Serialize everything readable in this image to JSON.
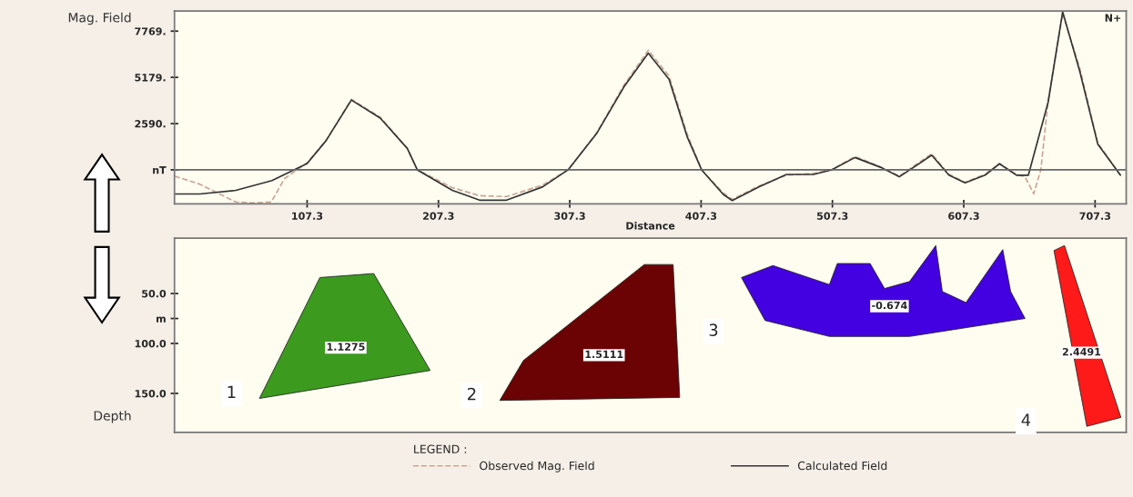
{
  "chart_data": [
    {
      "type": "line",
      "ylabel": "Mag. Field",
      "xlabel": "Distance",
      "annotations": [
        "N+"
      ],
      "legend": "bottom",
      "legend_title": "LEGEND :",
      "grid": false,
      "xlim": [
        6.3,
        731
      ],
      "xticks": [
        107.3,
        207.3,
        307.3,
        407.3,
        507.3,
        607.3,
        707.3
      ],
      "ylim": [
        -1900,
        8900
      ],
      "ref_lines": [
        {
          "axis": "y",
          "value": 0
        }
      ],
      "yticks": [
        {
          "value": 0,
          "label": "nT"
        },
        {
          "value": 2590,
          "label": "2590."
        },
        {
          "value": 5179,
          "label": "5179."
        },
        {
          "value": 7769,
          "label": "7769."
        }
      ],
      "series": [
        {
          "name": "Observed Mag. Field",
          "color": "#c9a596",
          "line_style": "dashed",
          "x": [
            6.3,
            25.5,
            53.0,
            66.7,
            80.0,
            90.0,
            107.3,
            121.7,
            141.0,
            163.0,
            183.6,
            191.2,
            217.9,
            238.6,
            259.2,
            286.7,
            306.0,
            328.0,
            348.6,
            367.1,
            382.9,
            396.7,
            407.7,
            424.2,
            431.0,
            451.6,
            472.3,
            492.9,
            506.6,
            524.5,
            544.4,
            558.2,
            582.9,
            596.0,
            608.3,
            623.5,
            634.5,
            647.5,
            654.0,
            660.6,
            666.0,
            671.6,
            682.6,
            695.6,
            709.4,
            726.6
          ],
          "values": [
            -350,
            -800,
            -1800,
            -1850,
            -1800,
            -500,
            400,
            1650,
            3950,
            2950,
            1200,
            0,
            -1000,
            -1450,
            -1500,
            -850,
            0,
            2100,
            4750,
            6700,
            5250,
            2000,
            0,
            -1300,
            -1650,
            -900,
            -300,
            -200,
            0,
            750,
            150,
            -350,
            900,
            -250,
            -700,
            -250,
            350,
            -250,
            -400,
            -1340,
            0,
            3900,
            8750,
            5700,
            1500,
            -300
          ]
        },
        {
          "name": "Calculated Field",
          "color": "#333333",
          "line_style": "solid",
          "x": [
            6.3,
            25.5,
            53.0,
            80.5,
            107.3,
            121.7,
            141.0,
            163.0,
            183.6,
            191.2,
            217.9,
            238.6,
            259.2,
            286.7,
            306.0,
            328.0,
            348.6,
            367.1,
            382.9,
            396.7,
            407.7,
            424.2,
            431.0,
            451.6,
            472.3,
            492.9,
            506.6,
            524.5,
            544.4,
            558.2,
            582.9,
            596.0,
            608.3,
            623.5,
            634.5,
            647.5,
            656.5,
            671.6,
            682.6,
            695.6,
            709.4,
            726.6
          ],
          "values": [
            -1350,
            -1350,
            -1150,
            -600,
            350,
            1630,
            3910,
            2900,
            1200,
            0,
            -1150,
            -1700,
            -1700,
            -950,
            0,
            2060,
            4650,
            6540,
            5070,
            1850,
            0,
            -1380,
            -1720,
            -950,
            -260,
            -260,
            0,
            690,
            130,
            -390,
            820,
            -300,
            -730,
            -300,
            340,
            -300,
            -300,
            3800,
            8850,
            5530,
            1430,
            -300
          ]
        }
      ]
    },
    {
      "type": "line",
      "ylabel": "Depth",
      "tick_labels": "y",
      "xlim": [
        6.3,
        731
      ],
      "ylim": [
        189,
        -5.5
      ],
      "yticks": [
        {
          "value": 50,
          "label": "50.0"
        },
        {
          "value": 75,
          "label": "m"
        },
        {
          "value": 100,
          "label": "100.0"
        },
        {
          "value": 150,
          "label": "150.0"
        }
      ],
      "annotations": [
        "1.1275",
        "1.5111",
        "-0.674",
        "2.4491",
        "1",
        "2",
        "3",
        "4"
      ],
      "series": [
        {
          "type": "area",
          "color": "#3c9a1f",
          "x": [
            117,
            158,
            201,
            71
          ],
          "values": [
            34,
            30,
            127,
            155
          ]
        },
        {
          "type": "area",
          "color": "#6b0204",
          "x": [
            364,
            386,
            391,
            254,
            272
          ],
          "values": [
            21,
            21,
            154,
            157,
            117
          ]
        },
        {
          "type": "area",
          "color": "#4300e0",
          "x": [
            438,
            462,
            505,
            511,
            536,
            547,
            566,
            586,
            591,
            609,
            637,
            643,
            654,
            566,
            505,
            456
          ],
          "values": [
            34,
            22,
            41,
            20,
            20,
            45,
            38,
            2,
            48,
            59,
            6,
            48,
            75,
            93,
            93,
            77
          ]
        },
        {
          "type": "area",
          "color": "#ff1a1a",
          "x": [
            676,
            684,
            727,
            701
          ],
          "values": [
            7,
            2,
            174,
            183
          ]
        }
      ]
    }
  ]
}
